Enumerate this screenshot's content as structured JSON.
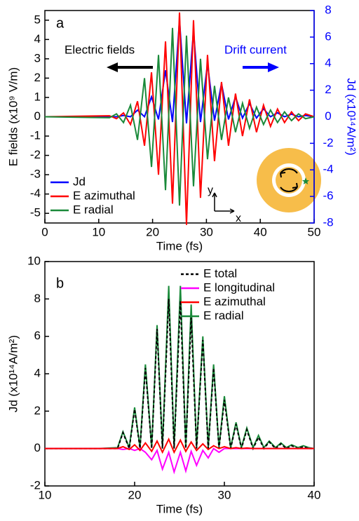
{
  "chart_data": [
    {
      "type": "line",
      "panel_label": "a",
      "left_note": "Electric fields",
      "right_note": "Drift current",
      "inset_y": "y",
      "inset_x": "x",
      "x_label": "Time (fs)",
      "y_label": "E fields (x10⁹ V/m)",
      "y2_label": "Jd (x10¹⁴A/m²)",
      "y2_color": "#0000ff",
      "xlim": [
        0,
        50
      ],
      "xticks": [
        0,
        10,
        20,
        30,
        40,
        50
      ],
      "ylim": [
        -5.5,
        5.5
      ],
      "yticks": [
        -5,
        -4,
        -3,
        -2,
        -1,
        0,
        1,
        2,
        3,
        4,
        5
      ],
      "y2lim": [
        -8,
        8
      ],
      "y2ticks": [
        -8,
        -6,
        -4,
        -2,
        0,
        2,
        4,
        6,
        8
      ],
      "legend": "lower left",
      "x": [
        0,
        12,
        13.3,
        14.6,
        15.9,
        17.2,
        18.5,
        19.8,
        21.1,
        22.4,
        23.7,
        25.0,
        26.3,
        27.6,
        28.9,
        30.2,
        31.5,
        32.8,
        34.1,
        35.4,
        36.7,
        38.0,
        39.3,
        40.6,
        41.9,
        43.2,
        44.5,
        45.8,
        47.1,
        48.4,
        50
      ],
      "series": [
        {
          "name": "Jd",
          "color": "#0000ff",
          "axis": "y2",
          "values": [
            0,
            0,
            0,
            0.1,
            0,
            0.5,
            0,
            1.5,
            -0.2,
            3.5,
            -0.4,
            7.3,
            -0.5,
            6.5,
            -0.4,
            4.0,
            -0.3,
            2.5,
            -0.2,
            1.5,
            -0.1,
            1.0,
            -0.1,
            0.6,
            0,
            0.3,
            0,
            0.2,
            0,
            0.1,
            0
          ]
        },
        {
          "name": "E azimuthal",
          "color": "#ff0000",
          "values": [
            0,
            0.05,
            -0.1,
            0.2,
            -0.4,
            0.8,
            -1.5,
            2.3,
            -3.0,
            3.9,
            -4.5,
            5.4,
            -5.6,
            5.0,
            -4.2,
            3.2,
            -2.3,
            1.8,
            -1.5,
            1.2,
            -1.0,
            0.9,
            -0.8,
            0.6,
            -0.5,
            0.4,
            -0.3,
            0.25,
            -0.2,
            0.15,
            0
          ]
        },
        {
          "name": "E radial",
          "color": "#1a8a3a",
          "values": [
            0,
            -0.05,
            0.15,
            -0.3,
            0.6,
            -1.2,
            2.0,
            -2.6,
            3.2,
            -3.8,
            4.6,
            -4.6,
            4.2,
            -3.6,
            3.0,
            -2.2,
            1.6,
            -1.2,
            1.0,
            -0.8,
            0.7,
            -0.6,
            0.5,
            -0.4,
            0.35,
            -0.3,
            0.25,
            -0.2,
            0.15,
            -0.1,
            0
          ]
        }
      ]
    },
    {
      "type": "line",
      "panel_label": "b",
      "x_label": "Time (fs)",
      "y_label": "Jd (x10¹⁴A/m²)",
      "xlim": [
        10,
        40
      ],
      "xticks": [
        10,
        20,
        30,
        40
      ],
      "ylim": [
        -2,
        10
      ],
      "yticks": [
        -2,
        0,
        2,
        4,
        6,
        8,
        10
      ],
      "legend": "upper right",
      "x": [
        10,
        16,
        18.1,
        18.7,
        19.4,
        20.0,
        20.6,
        21.2,
        21.9,
        22.5,
        23.1,
        23.8,
        24.4,
        25.1,
        25.7,
        26.3,
        26.9,
        27.6,
        28.2,
        28.8,
        29.4,
        30.0,
        30.7,
        31.3,
        31.9,
        32.5,
        33.2,
        33.8,
        34.4,
        35.0,
        35.7,
        36.3,
        36.9,
        37.5,
        38.2,
        38.8,
        39.4,
        40
      ],
      "series": [
        {
          "name": "E radial",
          "color": "#1a8a3a",
          "legend_index": 3,
          "values": [
            0,
            0,
            0.05,
            0.9,
            0.05,
            2.2,
            0.05,
            4.5,
            0.05,
            6.6,
            0.05,
            8.7,
            0.05,
            8.7,
            0.05,
            7.7,
            0.05,
            6.0,
            0.05,
            4.5,
            0.05,
            2.8,
            0.05,
            1.4,
            0.05,
            1.1,
            0.05,
            0.7,
            0.05,
            0.4,
            0.05,
            0.3,
            0.05,
            0.2,
            0.05,
            0.15,
            0.05,
            0
          ]
        },
        {
          "name": "E total",
          "color": "#000000",
          "linestyle": "dashed",
          "legend_index": 0,
          "values": [
            0,
            0,
            0,
            0.85,
            0,
            2.1,
            0,
            4.3,
            0,
            6.4,
            0,
            8.0,
            0,
            7.9,
            0,
            7.0,
            0,
            5.8,
            0,
            4.3,
            0,
            2.6,
            0,
            1.3,
            0,
            1.0,
            0,
            0.6,
            0,
            0.35,
            0,
            0.25,
            0,
            0.15,
            0,
            0.1,
            0,
            0
          ]
        },
        {
          "name": "E longitudinal",
          "color": "#ff00ff",
          "legend_index": 1,
          "values": [
            0,
            0,
            0,
            -0.05,
            0,
            -0.1,
            0,
            -0.2,
            -0.6,
            -0.1,
            -1.1,
            -0.2,
            -1.25,
            -0.2,
            -1.2,
            -0.15,
            -0.9,
            -0.1,
            -0.5,
            0,
            -0.2,
            0,
            0,
            0,
            0,
            0,
            0,
            0,
            0,
            0,
            0,
            0,
            0,
            0,
            0,
            0,
            0,
            0
          ]
        },
        {
          "name": "E azimuthal",
          "color": "#ff0000",
          "legend_index": 2,
          "values": [
            0,
            0,
            0,
            0.1,
            -0.05,
            0.2,
            -0.1,
            0.3,
            -0.15,
            0.4,
            -0.2,
            0.5,
            -0.2,
            0.45,
            -0.15,
            0.35,
            -0.1,
            0.25,
            -0.05,
            0.15,
            0,
            0.1,
            0,
            0.05,
            0,
            0.03,
            0,
            0,
            0,
            0,
            0,
            0,
            0,
            0,
            0,
            0,
            0,
            0
          ]
        }
      ]
    }
  ]
}
